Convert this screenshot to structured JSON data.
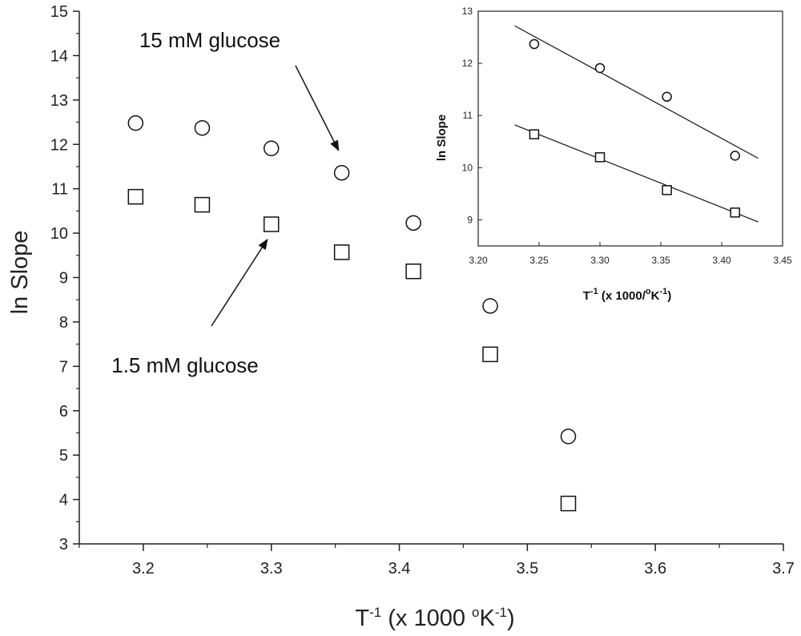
{
  "chart_data": [
    {
      "type": "scatter",
      "xlabel": {
        "base": "T",
        "sup": "-1",
        "mid": " (x 1000 ",
        "unit_sup": "o",
        "unit": "K",
        "unit_sup2": "-1",
        "end": ")"
      },
      "ylabel": "ln Slope",
      "xlim": [
        3.15,
        3.7
      ],
      "ylim": [
        3,
        15
      ],
      "xticks": [
        3.2,
        3.3,
        3.4,
        3.5,
        3.6,
        3.7
      ],
      "xtick_labels": [
        "3.2",
        "3.3",
        "3.4",
        "3.5",
        "3.6",
        "3.7"
      ],
      "yticks": [
        3,
        4,
        5,
        6,
        7,
        8,
        9,
        10,
        11,
        12,
        13,
        14,
        15
      ],
      "ytick_labels": [
        "3",
        "4",
        "5",
        "6",
        "7",
        "8",
        "9",
        "10",
        "11",
        "12",
        "13",
        "14",
        "15"
      ],
      "series": [
        {
          "marker": "circle",
          "x": [
            3.194,
            3.246,
            3.3,
            3.355,
            3.411,
            3.471,
            3.532
          ],
          "y": [
            12.48,
            12.37,
            11.91,
            11.36,
            10.23,
            8.36,
            5.42
          ]
        },
        {
          "marker": "square",
          "x": [
            3.194,
            3.246,
            3.3,
            3.355,
            3.411,
            3.471,
            3.532
          ],
          "y": [
            10.82,
            10.64,
            10.2,
            9.57,
            9.14,
            7.27,
            3.91
          ]
        }
      ],
      "annotations": [
        {
          "text": "15 mM glucose",
          "points_to": {
            "x": 3.355,
            "y": 11.36
          }
        },
        {
          "text": "1.5 mM glucose",
          "points_to": {
            "x": 3.3,
            "y": 10.2
          }
        }
      ]
    },
    {
      "type": "scatter",
      "xlabel": {
        "base": "T",
        "sup": "-1",
        "mid": " (x 1000/",
        "unit_sup": "o",
        "unit": "K",
        "unit_sup2": "-1",
        "end": ")"
      },
      "ylabel": "ln Slope",
      "xlim": [
        3.2,
        3.45
      ],
      "ylim": [
        8.5,
        13
      ],
      "xticks": [
        3.2,
        3.25,
        3.3,
        3.35,
        3.4,
        3.45
      ],
      "xtick_labels": [
        "3.20",
        "3.25",
        "3.30",
        "3.35",
        "3.40",
        "3.45"
      ],
      "yticks": [
        9,
        10,
        11,
        12,
        13
      ],
      "ytick_labels": [
        "9",
        "10",
        "11",
        "12",
        "13"
      ],
      "series": [
        {
          "marker": "circle",
          "x": [
            3.246,
            3.3,
            3.355,
            3.411
          ],
          "y": [
            12.37,
            11.91,
            11.36,
            10.23
          ],
          "fit": {
            "x": [
              3.23,
              3.43
            ],
            "y": [
              12.72,
              10.18
            ]
          }
        },
        {
          "marker": "square",
          "x": [
            3.246,
            3.3,
            3.355,
            3.411
          ],
          "y": [
            10.64,
            10.2,
            9.57,
            9.14
          ],
          "fit": {
            "x": [
              3.23,
              3.43
            ],
            "y": [
              10.82,
              8.96
            ]
          }
        }
      ]
    }
  ]
}
